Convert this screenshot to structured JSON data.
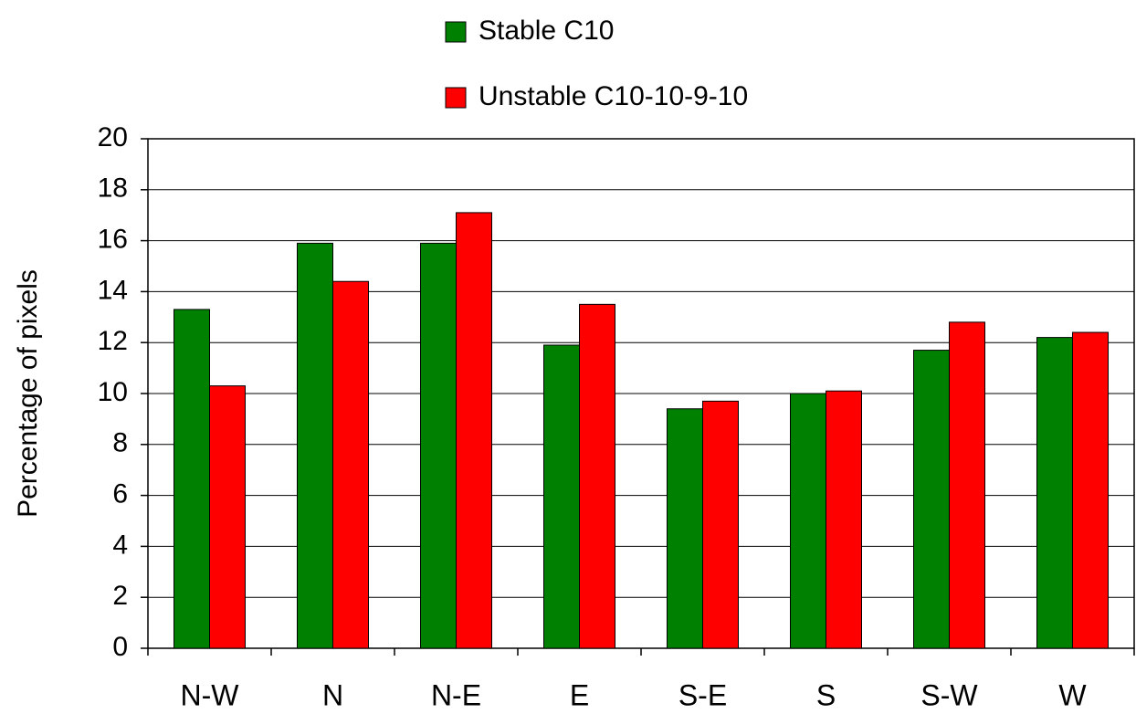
{
  "chart_data": {
    "type": "bar",
    "y_label": "Percentage of pixels",
    "categories": [
      "N-W",
      "N",
      "N-E",
      "E",
      "S-E",
      "S",
      "S-W",
      "W"
    ],
    "series": [
      {
        "name": "Stable C10",
        "color": "#008000",
        "values": [
          13.3,
          15.9,
          15.9,
          11.9,
          9.4,
          10.0,
          11.7,
          12.2
        ]
      },
      {
        "name": "Unstable C10-10-9-10",
        "color": "#ff0000",
        "values": [
          10.3,
          14.4,
          17.1,
          13.5,
          9.7,
          10.1,
          12.8,
          12.4
        ]
      }
    ],
    "ylim": [
      0,
      20
    ],
    "yticks": [
      0,
      2,
      4,
      6,
      8,
      10,
      12,
      14,
      16,
      18,
      20
    ],
    "grid": true
  }
}
